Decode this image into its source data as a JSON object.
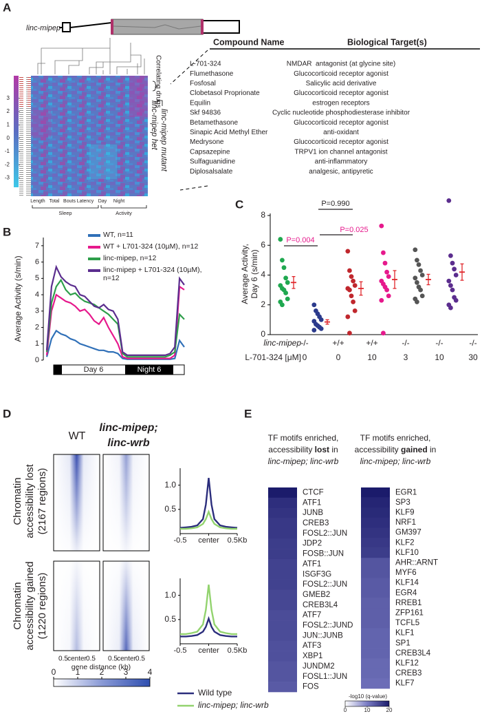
{
  "panel_labels": [
    "A",
    "B",
    "C",
    "D",
    "E"
  ],
  "panel_a": {
    "gene_label": "linc-mipep",
    "colorbar": {
      "lim": [
        -3.7,
        4.7
      ],
      "ticks": [
        3,
        2,
        1,
        0,
        -1,
        -2,
        -3
      ],
      "colors": [
        "#3ec8e8",
        "#5b6ec2",
        "#b23aa6"
      ]
    },
    "column_labels": [
      "Length",
      "Total",
      "Bouts",
      "Latency",
      "Day",
      "Night"
    ],
    "group_labels": [
      "Sleep",
      "Activity"
    ],
    "side_labels": {
      "drugs": "Correlating drugs",
      "mutant": "linc-mipep mutant",
      "het": "linc-mipep het"
    },
    "table": {
      "header": [
        "Compound Name",
        "Biological Target(s)"
      ],
      "rows": [
        [
          "L-701-324",
          "NMDAR  antagonist (at glycine site)"
        ],
        [
          "Flumethasone",
          "Glucocorticoid receptor agonist"
        ],
        [
          "Fosfosal",
          "Salicylic acid derivative"
        ],
        [
          "Clobetasol Proprionate",
          "Glucocorticoid receptor agonist"
        ],
        [
          "Equilin",
          "estrogen receptors"
        ],
        [
          "Skf 94836",
          "Cyclic nucleotide phosphodiesterase inhibitor"
        ],
        [
          "Betamethasone",
          "Glucocorticoid receptor agonist"
        ],
        [
          "Sinapic Acid Methyl Ether",
          "anti-oxidant"
        ],
        [
          "Medrysone",
          "Glucocorticoid receptor agonist"
        ],
        [
          "Capsazepine",
          "TRPV1 ion channel antagonist"
        ],
        [
          "Sulfaguanidine",
          "anti-inflammatory"
        ],
        [
          "Diplosalsalate",
          "analgesic, antipyretic"
        ]
      ]
    }
  },
  "chart_data": [
    {
      "type": "line",
      "ylabel": "Average Activity (s/min)",
      "ylim": [
        0,
        7.5
      ],
      "yticks": [
        0,
        1,
        2,
        3,
        4,
        5,
        6,
        7
      ],
      "period_labels": [
        "Day 6",
        "Night 6"
      ],
      "series": [
        {
          "name": "WT, n=11",
          "color": "#3070b8",
          "values": [
            0.2,
            1.3,
            1.8,
            1.6,
            1.5,
            1.3,
            1.2,
            1.0,
            0.9,
            0.8,
            0.7,
            0.6,
            0.6,
            0.5,
            0.5,
            0.4,
            0.1,
            0.05,
            0.05,
            0.05,
            0.05,
            0.05,
            0.05,
            0.05,
            0.05,
            0.05,
            0.05,
            0.1,
            1.2,
            0.8
          ]
        },
        {
          "name": "WT + L701-324 (10µM), n=12",
          "color": "#e6198c",
          "values": [
            0.3,
            3.0,
            4.0,
            3.8,
            3.6,
            3.5,
            3.3,
            3.0,
            3.1,
            2.8,
            2.4,
            2.2,
            2.6,
            2.0,
            1.5,
            1.0,
            0.2,
            0.1,
            0.1,
            0.1,
            0.1,
            0.1,
            0.1,
            0.1,
            0.1,
            0.1,
            0.1,
            0.3,
            4.5,
            4.3
          ]
        },
        {
          "name": "linc-mipep, n=12",
          "color": "#2e9e4a",
          "values": [
            0.5,
            3.5,
            4.5,
            4.9,
            4.3,
            4.0,
            4.1,
            3.8,
            3.6,
            3.5,
            3.4,
            3.2,
            3.0,
            2.8,
            2.5,
            2.2,
            0.4,
            0.2,
            0.2,
            0.2,
            0.2,
            0.2,
            0.2,
            0.2,
            0.2,
            0.2,
            0.3,
            0.5,
            2.8,
            2.5
          ]
        },
        {
          "name": "linc-mipep + L701-324 (10µM), n=12",
          "color": "#5b2d8e",
          "values": [
            0.6,
            4.5,
            5.7,
            5.1,
            4.8,
            4.6,
            4.5,
            4.0,
            3.9,
            3.6,
            3.3,
            3.2,
            3.4,
            3.1,
            3.0,
            2.5,
            0.5,
            0.3,
            0.3,
            0.3,
            0.3,
            0.3,
            0.3,
            0.3,
            0.3,
            0.3,
            0.4,
            0.8,
            5.0,
            4.6
          ]
        }
      ]
    },
    {
      "type": "scatter",
      "ylabel": [
        "Average Activity,",
        "Day 6 (s/min)"
      ],
      "ylim": [
        0,
        8.6
      ],
      "yticks": [
        0,
        2,
        4,
        6,
        8
      ],
      "row_labels": [
        "linc-mipep",
        "L-701-324 [μM]"
      ],
      "genotypes": [
        "-/-",
        "+/+",
        "+/+",
        "-/-",
        "-/-",
        "-/-"
      ],
      "doses": [
        0,
        0,
        10,
        3,
        10,
        30
      ],
      "mean_color": "#e0262b",
      "groups": [
        {
          "color": "#1fa84f",
          "values": [
            6.4,
            5.0,
            4.5,
            3.8,
            3.5,
            3.3,
            3.1,
            3.0,
            2.8,
            2.4,
            2.2,
            2.0
          ],
          "mean": 3.5,
          "error": 0.4
        },
        {
          "color": "#2b3a8c",
          "values": [
            2.0,
            1.6,
            1.4,
            1.2,
            1.0,
            0.9,
            0.7,
            0.6,
            0.5,
            0.4,
            0.3
          ],
          "mean": 0.85,
          "error": 0.15
        },
        {
          "color": "#c0272d",
          "values": [
            5.6,
            4.3,
            3.9,
            3.6,
            3.3,
            3.1,
            3.0,
            2.6,
            2.2,
            1.6,
            1.2,
            0.1
          ],
          "mean": 3.1,
          "error": 0.45
        },
        {
          "color": "#e6198c",
          "values": [
            7.3,
            5.5,
            4.8,
            4.2,
            3.9,
            3.6,
            3.4,
            3.2,
            3.0,
            2.6,
            2.3,
            0.1
          ],
          "mean": 3.7,
          "error": 0.6
        },
        {
          "color": "#555555",
          "values": [
            5.7,
            5.0,
            4.7,
            4.3,
            4.0,
            3.8,
            3.5,
            3.2,
            3.0,
            2.6,
            2.4,
            2.2
          ],
          "mean": 3.7,
          "error": 0.35
        },
        {
          "color": "#5b2d8e",
          "values": [
            9.0,
            5.3,
            4.8,
            4.4,
            4.0,
            3.6,
            3.3,
            3.0,
            2.5,
            2.3,
            2.0,
            1.8
          ],
          "mean": 4.2,
          "error": 0.55
        }
      ],
      "annotations": [
        {
          "text": "P=0.990",
          "color": "#231f20"
        },
        {
          "text": "P=0.025",
          "color": "#e6198c"
        },
        {
          "text": "P=0.004",
          "color": "#e6198c"
        }
      ]
    },
    {
      "type": "line",
      "x": [
        -0.5,
        -0.4,
        -0.3,
        -0.2,
        -0.1,
        -0.05,
        0,
        0.05,
        0.1,
        0.2,
        0.3,
        0.4,
        0.5
      ],
      "xlim": [
        -0.5,
        0.5
      ],
      "xticks": [
        -0.5,
        {
          "value": 0,
          "label": "center"
        },
        {
          "value": 0.5,
          "label": "0.5Kb"
        }
      ],
      "ylim": [
        0,
        1.35
      ],
      "yticks": [
        0.5,
        {
          "value": 1,
          "label": "1.0"
        }
      ],
      "series": [
        {
          "name": "Wild type",
          "color": "#2b2d7c",
          "values": [
            0.12,
            0.13,
            0.14,
            0.17,
            0.3,
            0.6,
            1.15,
            0.6,
            0.3,
            0.17,
            0.14,
            0.13,
            0.12
          ]
        },
        {
          "name": "linc-mipep; linc-wrb",
          "color": "#92d36e",
          "values": [
            0.1,
            0.1,
            0.11,
            0.13,
            0.2,
            0.3,
            0.45,
            0.3,
            0.2,
            0.13,
            0.11,
            0.1,
            0.1
          ]
        }
      ]
    },
    {
      "type": "line",
      "x": [
        -0.5,
        -0.4,
        -0.3,
        -0.2,
        -0.1,
        -0.05,
        0,
        0.05,
        0.1,
        0.2,
        0.3,
        0.4,
        0.5
      ],
      "xlim": [
        -0.5,
        0.5
      ],
      "xticks": [
        -0.5,
        {
          "value": 0,
          "label": "center"
        },
        {
          "value": 0.5,
          "label": "0.5Kb"
        }
      ],
      "ylim": [
        0,
        1.35
      ],
      "yticks": [
        0.5,
        {
          "value": 1,
          "label": "1.0"
        }
      ],
      "series": [
        {
          "color": "#2b2d7c",
          "values": [
            0.15,
            0.15,
            0.16,
            0.18,
            0.25,
            0.35,
            0.52,
            0.35,
            0.25,
            0.18,
            0.16,
            0.15,
            0.15
          ]
        },
        {
          "color": "#92d36e",
          "values": [
            0.2,
            0.2,
            0.22,
            0.25,
            0.4,
            0.7,
            1.22,
            0.7,
            0.4,
            0.25,
            0.22,
            0.2,
            0.2
          ]
        }
      ]
    }
  ],
  "panel_d": {
    "wt_title": "WT",
    "mutant_title": [
      "linc-mipep;",
      "linc-wrb"
    ],
    "row_labels": [
      [
        "Chromatin",
        "accessibility lost",
        "(2167 regions)"
      ],
      [
        "Chromatin",
        "accessibility gained",
        "(1220 regions)"
      ]
    ],
    "heatmap_xticks": [
      {
        "value": -0.5,
        "label": "0.5"
      },
      {
        "value": 0,
        "label": "center"
      },
      {
        "value": 0.5,
        "label": "0.5"
      }
    ],
    "xlabel": "gene distance (kb)",
    "colorbar": {
      "lim": [
        0,
        4
      ],
      "ticks": [
        0,
        1,
        2,
        3,
        4
      ],
      "colors": [
        "#ffffff",
        "#8a9ad6",
        "#2f4fb0"
      ]
    }
  },
  "panel_e": {
    "columns": [
      {
        "header": [
          [
            "TF motifs enriched,"
          ],
          [
            "accessibility ",
            "lost",
            " in"
          ],
          [
            "linc-mipep; linc-wrb"
          ]
        ],
        "labels": [
          "CTCF",
          "ATF1",
          "JUNB",
          "CREB3",
          "FOSL2::JUN",
          "JDP2",
          "FOSB::JUN",
          "ATF1",
          "ISGF3G",
          "FOSL2::JUN",
          "GMEB2",
          "CREB3L4",
          "ATF7",
          "FOSL2::JUND",
          "JUN::JUNB",
          "ATF3",
          "XBP1",
          "JUNDM2",
          "FOSL1::JUN",
          "FOS"
        ],
        "values": [
          20,
          18,
          17.5,
          17,
          17,
          16.5,
          16.5,
          16,
          16,
          16,
          15.5,
          15.5,
          15,
          15,
          15,
          14.5,
          14.5,
          14,
          14,
          13.5
        ]
      },
      {
        "header": [
          [
            "TF motifs enriched,"
          ],
          [
            "accessibility ",
            "gained",
            " in"
          ],
          [
            "linc-mipep; linc-wrb"
          ]
        ],
        "labels": [
          "EGR1",
          "SP3",
          "KLF9",
          "NRF1",
          "GM397",
          "KLF2",
          "KLF10",
          "AHR::ARNT",
          "MYF6",
          "KLF14",
          "EGR4",
          "RREB1",
          "ZFP161",
          "TCFL5",
          "KLF1",
          "SP1",
          "CREB3L4",
          "KLF12",
          "CREB3",
          "KLF7"
        ],
        "values": [
          20,
          19,
          18.5,
          18,
          17.5,
          17,
          16.5,
          14,
          14,
          13.5,
          13.5,
          13,
          13,
          13,
          12.5,
          12.5,
          12.5,
          12,
          12,
          11.5
        ]
      }
    ],
    "colorbar": {
      "label": "-log10 (q-value)",
      "lim": [
        0,
        20
      ],
      "ticks": [
        0,
        10,
        20
      ],
      "colors": [
        "#ffffff",
        "#7a7cc4",
        "#1b1b6b"
      ]
    }
  }
}
